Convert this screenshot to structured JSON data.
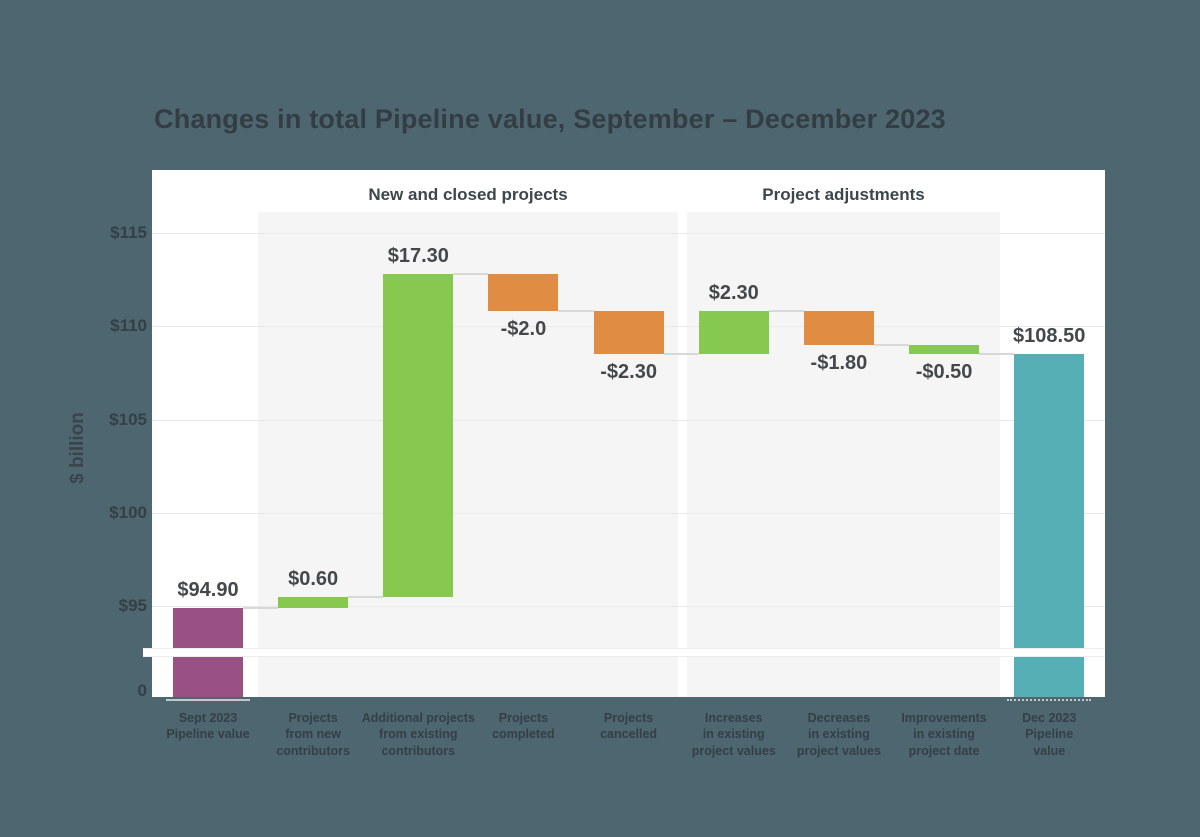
{
  "page": {
    "background_color": "#4d6670"
  },
  "chart_data": {
    "type": "waterfall",
    "title": "Changes in total Pipeline value, September – December 2023",
    "ylabel": "$ billion",
    "unit": "$ billion",
    "grid": "horizontal",
    "legend": "none",
    "axis_break_above_zero": true,
    "ylim_visible": [
      92,
      116.5
    ],
    "y_ticks": [
      {
        "label": "$115",
        "value": 115
      },
      {
        "label": "$110",
        "value": 110
      },
      {
        "label": "$105",
        "value": 105
      },
      {
        "label": "$100",
        "value": 100
      },
      {
        "label": "$95",
        "value": 95
      },
      {
        "label": "0",
        "value": 0
      }
    ],
    "groups": [
      {
        "label": "New and closed projects",
        "bar_indexes": [
          1,
          2,
          3,
          4
        ]
      },
      {
        "label": "Project adjustments",
        "bar_indexes": [
          5,
          6,
          7
        ]
      }
    ],
    "bars": [
      {
        "category": "Sept 2023\nPipeline value",
        "value": 94.9,
        "label": "$94.90",
        "kind": "total",
        "color": "purple",
        "label_pos": "above"
      },
      {
        "category": "Projects\nfrom new\ncontributors",
        "value": 0.6,
        "label": "$0.60",
        "kind": "delta",
        "color": "green",
        "label_pos": "above"
      },
      {
        "category": "Additional projects\nfrom existing\ncontributors",
        "value": 17.3,
        "label": "$17.30",
        "kind": "delta",
        "color": "green",
        "label_pos": "above"
      },
      {
        "category": "Projects\ncompleted",
        "value": -2.0,
        "label": "-$2.0",
        "kind": "delta",
        "color": "orange",
        "label_pos": "below"
      },
      {
        "category": "Projects\ncancelled",
        "value": -2.3,
        "label": "-$2.30",
        "kind": "delta",
        "color": "orange",
        "label_pos": "below"
      },
      {
        "category": "Increases\nin existing\nproject values",
        "value": 2.3,
        "label": "$2.30",
        "kind": "delta",
        "color": "green",
        "label_pos": "above"
      },
      {
        "category": "Decreases\nin existing\nproject values",
        "value": -1.8,
        "label": "-$1.80",
        "kind": "delta",
        "color": "orange",
        "label_pos": "below"
      },
      {
        "category": "Improvements\nin existing\nproject date",
        "value": -0.5,
        "label": "-$0.50",
        "kind": "delta",
        "color": "green",
        "label_pos": "below"
      },
      {
        "category": "Dec 2023\nPipeline\nvalue",
        "value": 108.5,
        "label": "$108.50",
        "kind": "total",
        "color": "teal",
        "label_pos": "above"
      }
    ],
    "running_totals": [
      94.9,
      95.5,
      112.8,
      110.8,
      108.5,
      110.8,
      109.0,
      108.5,
      108.5
    ],
    "palette": {
      "purple": "#975183",
      "green": "#87c94e",
      "orange": "#e08c42",
      "teal": "#55afb4"
    }
  }
}
